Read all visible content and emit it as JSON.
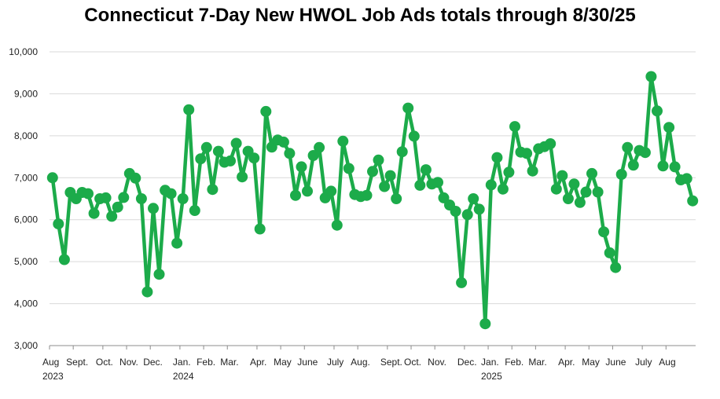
{
  "chart_data": {
    "type": "line",
    "title": "Connecticut 7-Day New HWOL Job Ads totals through 8/30/25",
    "xlabel": "",
    "ylabel": "",
    "ylim": [
      3000,
      10000
    ],
    "y_ticks": [
      "3,000",
      "4,000",
      "5,000",
      "6,000",
      "7,000",
      "8,000",
      "9,000",
      "10,000"
    ],
    "grid": "horizontal",
    "color": "#1cab4a",
    "x_labels": [
      {
        "text": "Aug",
        "week": 0
      },
      {
        "text": "Sept.",
        "week": 4
      },
      {
        "text": "Oct.",
        "week": 9
      },
      {
        "text": "Nov.",
        "week": 13
      },
      {
        "text": "Dec.",
        "week": 17
      },
      {
        "text": "Jan.",
        "week": 22
      },
      {
        "text": "Feb.",
        "week": 26
      },
      {
        "text": "Mar.",
        "week": 30
      },
      {
        "text": "Apr.",
        "week": 35
      },
      {
        "text": "May",
        "week": 39
      },
      {
        "text": "June",
        "week": 43
      },
      {
        "text": "July",
        "week": 48
      },
      {
        "text": "Aug.",
        "week": 52
      },
      {
        "text": "Sept.",
        "week": 57
      },
      {
        "text": "Oct.",
        "week": 61
      },
      {
        "text": "Nov.",
        "week": 65
      },
      {
        "text": "Dec.",
        "week": 70
      },
      {
        "text": "Jan.",
        "week": 74
      },
      {
        "text": "Feb.",
        "week": 78
      },
      {
        "text": "Mar.",
        "week": 82
      },
      {
        "text": "Apr.",
        "week": 87
      },
      {
        "text": "May",
        "week": 91
      },
      {
        "text": "June",
        "week": 95
      },
      {
        "text": "July",
        "week": 100
      },
      {
        "text": "Aug",
        "week": 104
      }
    ],
    "year_labels": [
      {
        "text": "2023",
        "week": 0
      },
      {
        "text": "2024",
        "week": 22
      },
      {
        "text": "2025",
        "week": 74
      }
    ],
    "series": [
      {
        "values": [
          7000,
          5900,
          5050,
          6650,
          6500,
          6650,
          6620,
          6150,
          6500,
          6520,
          6080,
          6300,
          6530,
          7100,
          6990,
          6500,
          4280,
          6270,
          4700,
          6700,
          6620,
          5440,
          6500,
          8620,
          6220,
          7450,
          7720,
          6720,
          7630,
          7370,
          7400,
          7820,
          7020,
          7630,
          7470,
          5780,
          8580,
          7730,
          7900,
          7850,
          7580,
          6580,
          7260,
          6680,
          7530,
          7720,
          6520,
          6680,
          5870,
          7870,
          7220,
          6600,
          6550,
          6580,
          7150,
          7420,
          6790,
          7050,
          6500,
          7620,
          8660,
          7990,
          6820,
          7190,
          6850,
          6890,
          6520,
          6350,
          6200,
          4500,
          6120,
          6500,
          6250,
          3520,
          6830,
          7480,
          6730,
          7130,
          8220,
          7610,
          7580,
          7160,
          7690,
          7740,
          7810,
          6730,
          7050,
          6500,
          6850,
          6410,
          6660,
          7100,
          6660,
          5710,
          5210,
          4860,
          7080,
          7720,
          7300,
          7650,
          7600,
          9410,
          8590,
          7280,
          8200,
          7260,
          6950,
          6980,
          6450
        ]
      }
    ]
  }
}
